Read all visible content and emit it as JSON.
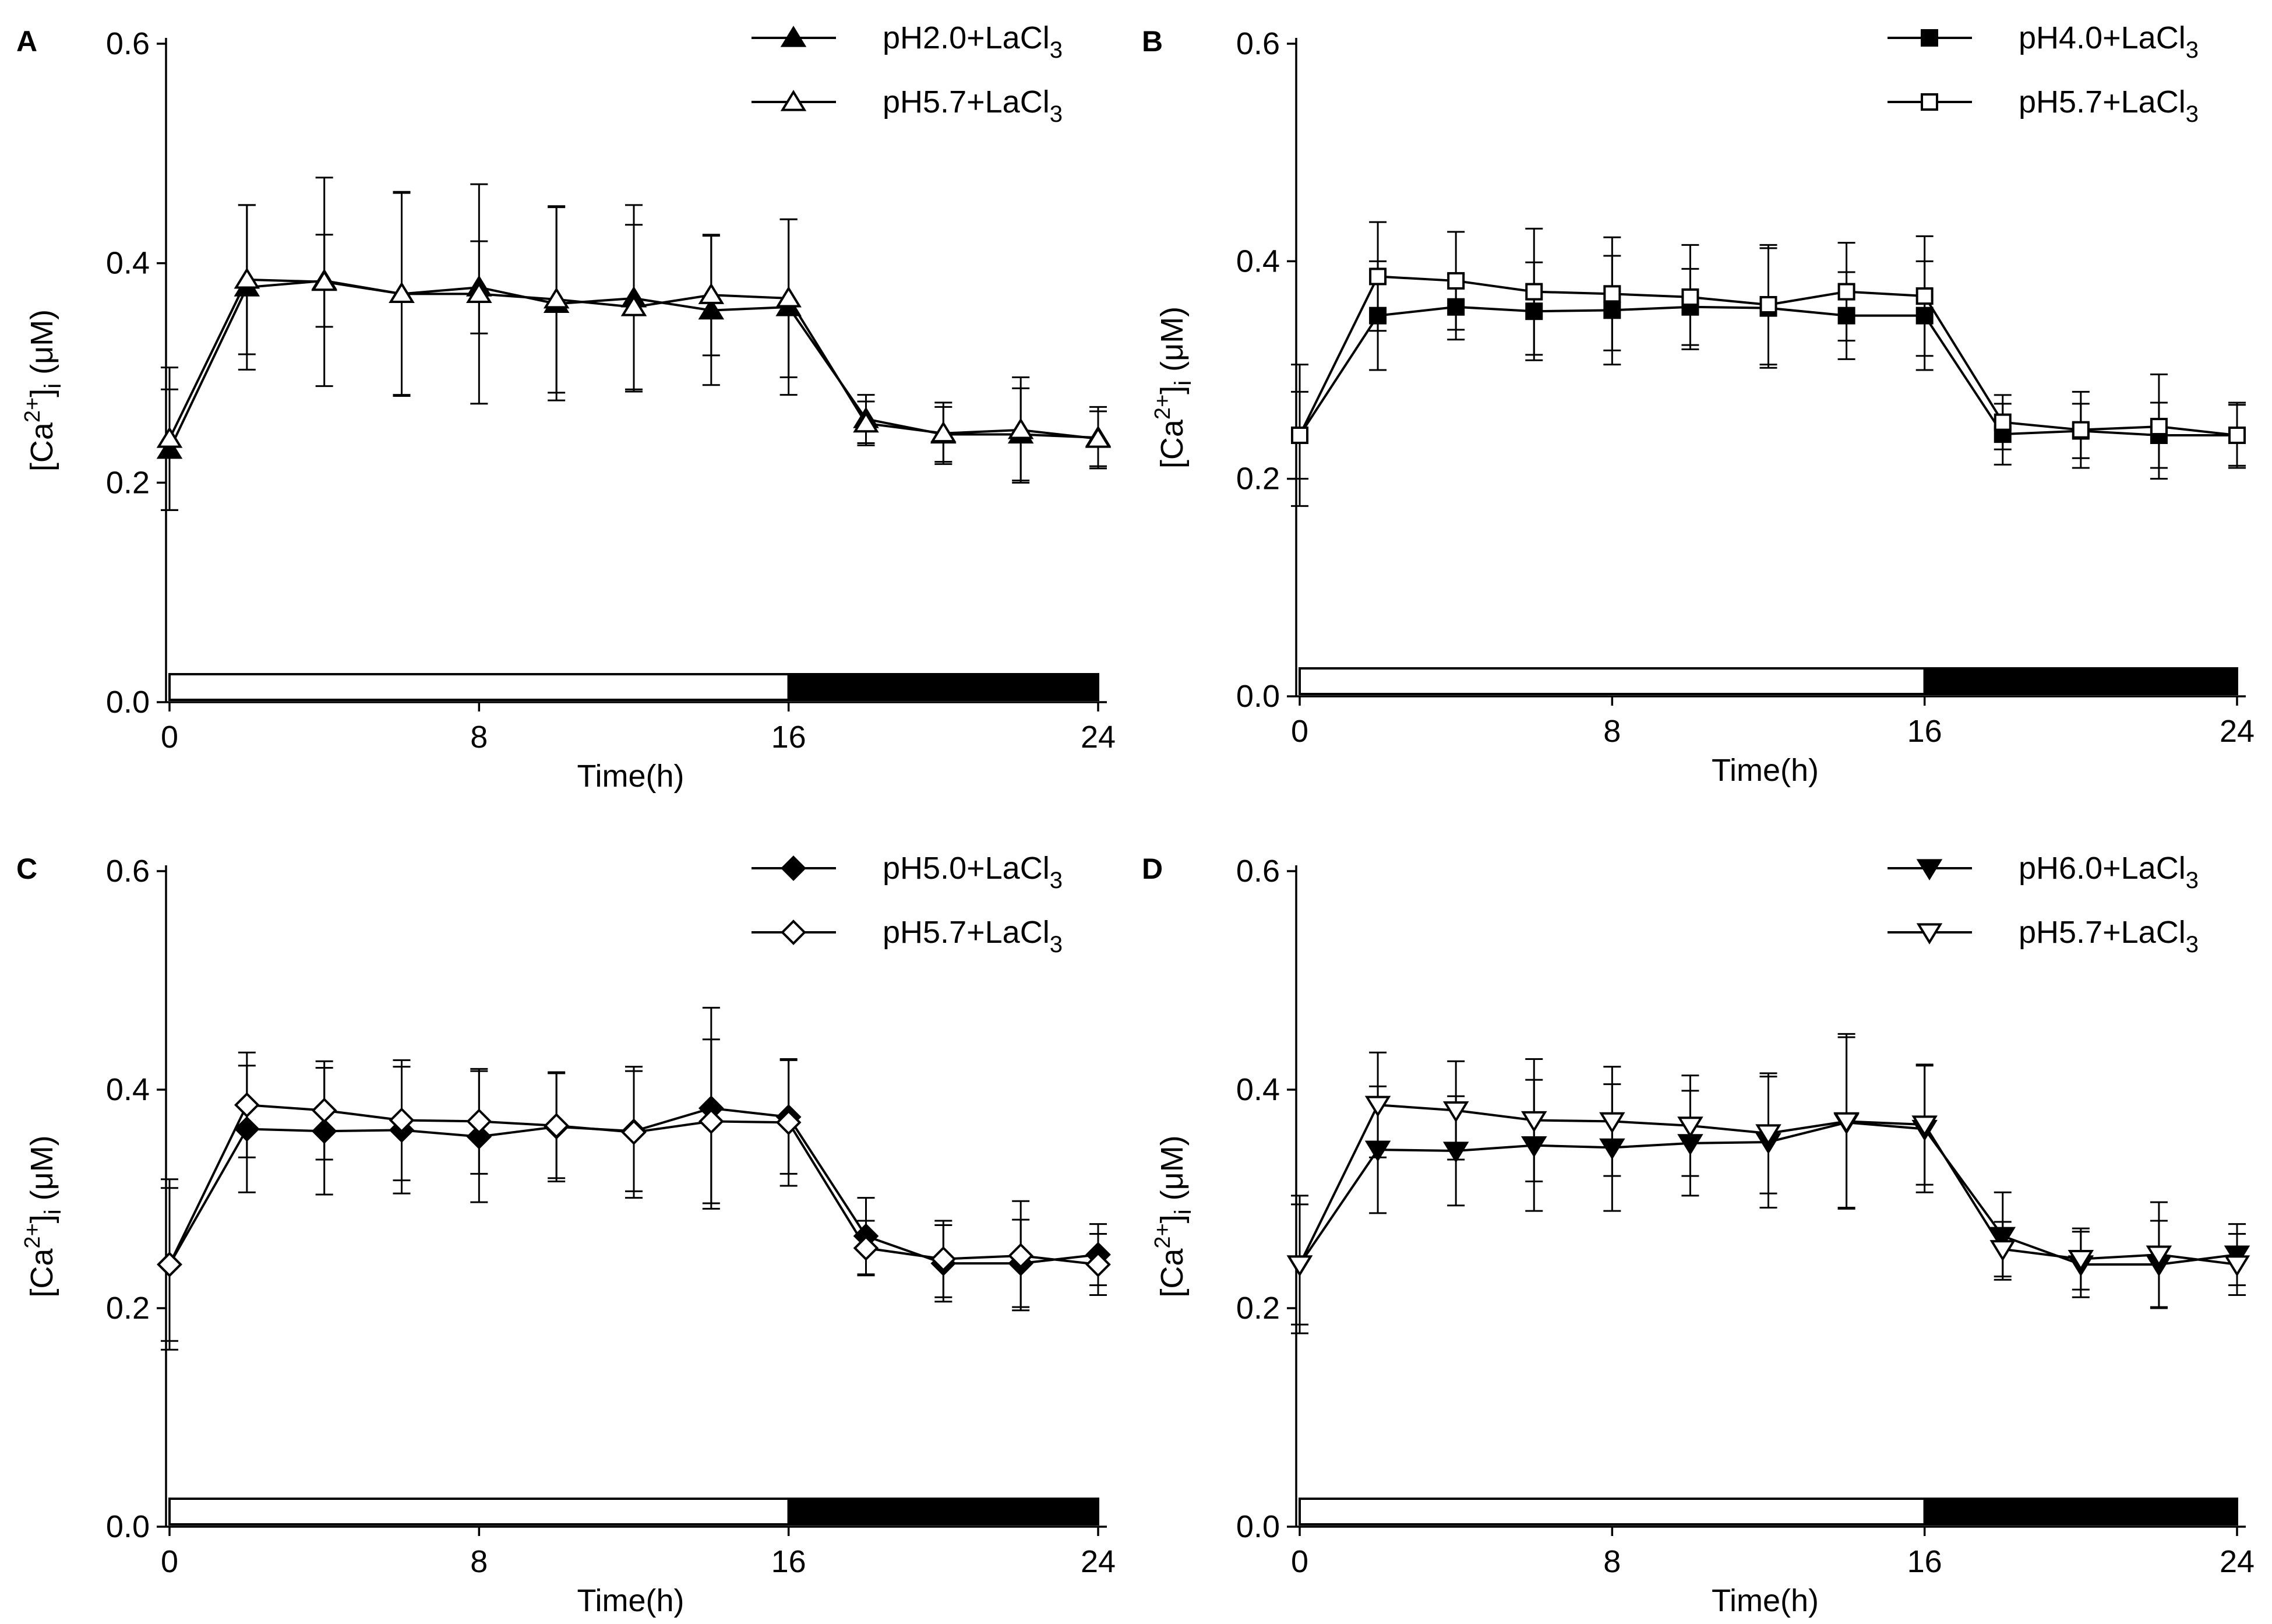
{
  "chart_data": [
    {
      "type": "line",
      "panel": "A",
      "xlabel": "Time(h)",
      "ylabel": "[Ca2+]i (μM)",
      "xlim": [
        0,
        24
      ],
      "ylim": [
        0,
        0.6
      ],
      "xticks": [
        0,
        8,
        16,
        24
      ],
      "yticks": [
        0.0,
        0.2,
        0.4,
        0.6
      ],
      "ytick_labels": [
        "0.0",
        "0.2",
        "0.4",
        "0.6"
      ],
      "light_dark_bar": {
        "light": [
          0,
          16
        ],
        "dark": [
          16,
          24
        ]
      },
      "legend_position": "top-right",
      "x": [
        0,
        2,
        4,
        6,
        8,
        10,
        12,
        14,
        16,
        18,
        20,
        22,
        24
      ],
      "series": [
        {
          "name": "pH2.0+LaCl",
          "name_sub": "3",
          "marker": "triangle-up",
          "filled": true,
          "values": [
            0.23,
            0.378,
            0.384,
            0.372,
            0.378,
            0.363,
            0.368,
            0.357,
            0.36,
            0.258,
            0.244,
            0.244,
            0.241
          ],
          "errors": [
            0.055,
            0.075,
            0.042,
            0.092,
            0.042,
            0.088,
            0.085,
            0.068,
            0.08,
            0.022,
            0.025,
            0.042,
            0.028
          ]
        },
        {
          "name": "pH5.7+LaCl",
          "name_sub": "3",
          "marker": "triangle-up",
          "filled": false,
          "values": [
            0.24,
            0.385,
            0.383,
            0.372,
            0.372,
            0.367,
            0.36,
            0.371,
            0.368,
            0.254,
            0.245,
            0.248,
            0.24
          ],
          "errors": [
            0.065,
            0.068,
            0.095,
            0.093,
            0.1,
            0.085,
            0.075,
            0.055,
            0.072,
            0.02,
            0.028,
            0.048,
            0.025
          ]
        }
      ]
    },
    {
      "type": "line",
      "panel": "B",
      "xlabel": "Time(h)",
      "ylabel": "[Ca2+]i (μM)",
      "xlim": [
        0,
        24
      ],
      "ylim": [
        0,
        0.6
      ],
      "xticks": [
        0,
        8,
        16,
        24
      ],
      "yticks": [
        0.0,
        0.2,
        0.4,
        0.6
      ],
      "ytick_labels": [
        "0.0",
        "0.2",
        "0.4",
        "0.6"
      ],
      "light_dark_bar": {
        "light": [
          0,
          16
        ],
        "dark": [
          16,
          24
        ]
      },
      "legend_position": "top-right",
      "x": [
        0,
        2,
        4,
        6,
        8,
        10,
        12,
        14,
        16,
        18,
        20,
        22,
        24
      ],
      "series": [
        {
          "name": "pH4.0+LaCl",
          "name_sub": "3",
          "marker": "square",
          "filled": true,
          "values": [
            0.24,
            0.35,
            0.358,
            0.354,
            0.355,
            0.358,
            0.357,
            0.35,
            0.35,
            0.241,
            0.244,
            0.24,
            0.24
          ],
          "errors": [
            0.04,
            0.05,
            0.03,
            0.045,
            0.05,
            0.035,
            0.055,
            0.04,
            0.05,
            0.028,
            0.025,
            0.03,
            0.028
          ]
        },
        {
          "name": "pH5.7+LaCl",
          "name_sub": "3",
          "marker": "square",
          "filled": false,
          "values": [
            0.24,
            0.386,
            0.382,
            0.372,
            0.37,
            0.367,
            0.36,
            0.372,
            0.368,
            0.252,
            0.245,
            0.248,
            0.24
          ],
          "errors": [
            0.065,
            0.05,
            0.045,
            0.058,
            0.052,
            0.048,
            0.055,
            0.045,
            0.055,
            0.025,
            0.035,
            0.048,
            0.03
          ]
        }
      ]
    },
    {
      "type": "line",
      "panel": "C",
      "xlabel": "Time(h)",
      "ylabel": "[Ca2+]i (μM)",
      "xlim": [
        0,
        24
      ],
      "ylim": [
        0,
        0.6
      ],
      "xticks": [
        0,
        8,
        16,
        24
      ],
      "yticks": [
        0.0,
        0.2,
        0.4,
        0.6
      ],
      "ytick_labels": [
        "0.0",
        "0.2",
        "0.4",
        "0.6"
      ],
      "light_dark_bar": {
        "light": [
          0,
          16
        ],
        "dark": [
          16,
          24
        ]
      },
      "legend_position": "top-right",
      "x": [
        0,
        2,
        4,
        6,
        8,
        10,
        12,
        14,
        16,
        18,
        20,
        22,
        24
      ],
      "series": [
        {
          "name": "pH5.0+LaCl",
          "name_sub": "3",
          "marker": "diamond",
          "filled": true,
          "values": [
            0.24,
            0.364,
            0.362,
            0.363,
            0.357,
            0.366,
            0.362,
            0.383,
            0.375,
            0.266,
            0.241,
            0.241,
            0.249
          ],
          "errors": [
            0.07,
            0.058,
            0.058,
            0.058,
            0.06,
            0.05,
            0.055,
            0.092,
            0.052,
            0.035,
            0.035,
            0.04,
            0.028
          ]
        },
        {
          "name": "pH5.7+LaCl",
          "name_sub": "3",
          "marker": "diamond",
          "filled": false,
          "values": [
            0.24,
            0.386,
            0.381,
            0.372,
            0.371,
            0.367,
            0.361,
            0.371,
            0.37,
            0.255,
            0.245,
            0.248,
            0.24
          ],
          "errors": [
            0.078,
            0.048,
            0.045,
            0.055,
            0.048,
            0.048,
            0.06,
            0.075,
            0.058,
            0.025,
            0.035,
            0.05,
            0.028
          ]
        }
      ]
    },
    {
      "type": "line",
      "panel": "D",
      "xlabel": "Time(h)",
      "ylabel": "[Ca2+]i (μM)",
      "xlim": [
        0,
        24
      ],
      "ylim": [
        0,
        0.6
      ],
      "xticks": [
        0,
        8,
        16,
        24
      ],
      "yticks": [
        0.0,
        0.2,
        0.4,
        0.6
      ],
      "ytick_labels": [
        "0.0",
        "0.2",
        "0.4",
        "0.6"
      ],
      "light_dark_bar": {
        "light": [
          0,
          16
        ],
        "dark": [
          16,
          24
        ]
      },
      "legend_position": "top-right",
      "x": [
        0,
        2,
        4,
        6,
        8,
        10,
        12,
        14,
        16,
        18,
        20,
        22,
        24
      ],
      "series": [
        {
          "name": "pH6.0+LaCl",
          "name_sub": "3",
          "marker": "triangle-down",
          "filled": true,
          "values": [
            0.24,
            0.345,
            0.344,
            0.349,
            0.347,
            0.351,
            0.352,
            0.37,
            0.364,
            0.266,
            0.24,
            0.24,
            0.249
          ],
          "errors": [
            0.055,
            0.058,
            0.05,
            0.06,
            0.058,
            0.048,
            0.06,
            0.078,
            0.058,
            0.04,
            0.03,
            0.04,
            0.028
          ]
        },
        {
          "name": "pH5.7+LaCl",
          "name_sub": "3",
          "marker": "triangle-down",
          "filled": false,
          "values": [
            0.24,
            0.386,
            0.381,
            0.372,
            0.371,
            0.367,
            0.36,
            0.371,
            0.368,
            0.254,
            0.245,
            0.249,
            0.24
          ],
          "errors": [
            0.063,
            0.048,
            0.045,
            0.056,
            0.05,
            0.046,
            0.055,
            0.08,
            0.055,
            0.025,
            0.028,
            0.048,
            0.028
          ]
        }
      ]
    }
  ]
}
